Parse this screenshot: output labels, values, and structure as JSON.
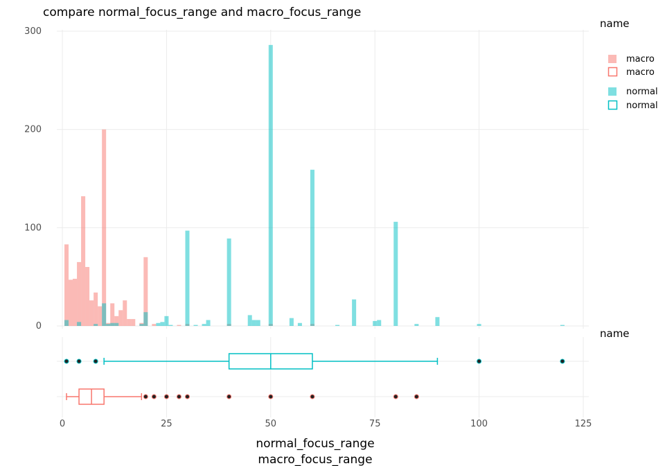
{
  "colors": {
    "macro": "#F8766D",
    "normal": "#00BFC4",
    "grid": "#EBEBEB",
    "outlier_fill": "#222222"
  },
  "chart_data": {
    "type": "bar",
    "title": "compare  normal_focus_range and macro_focus_range",
    "xlabel": "normal_focus_range",
    "xlabel2": "macro_focus_range",
    "xlim": [
      0,
      125
    ],
    "ylim": [
      0,
      300
    ],
    "x_ticks": [
      "0",
      "25",
      "50",
      "75",
      "100",
      "125"
    ],
    "y_ticks": [
      "0",
      "100",
      "200",
      "300"
    ],
    "bin_width": 1,
    "legend": {
      "title": "name",
      "title2": "name",
      "position": "right",
      "entries": [
        "macro",
        "macro",
        "normal",
        "normal"
      ]
    },
    "histogram": [
      {
        "name": "macro",
        "x": [
          1,
          2,
          3,
          4,
          5,
          6,
          7,
          8,
          9,
          10,
          11,
          12,
          13,
          14,
          15,
          16,
          17,
          19,
          20,
          22,
          28,
          30,
          40,
          50,
          60
        ],
        "values": [
          83,
          47,
          48,
          65,
          132,
          60,
          26,
          34,
          20,
          200,
          3,
          23,
          10,
          16,
          26,
          7,
          7,
          3,
          70,
          2,
          1,
          2,
          2,
          2,
          2
        ]
      },
      {
        "name": "normal",
        "x": [
          1,
          4,
          8,
          10,
          11,
          12,
          13,
          19,
          20,
          23,
          24,
          25,
          26,
          30,
          32,
          34,
          35,
          40,
          45,
          46,
          47,
          50,
          55,
          57,
          60,
          66,
          70,
          75,
          76,
          80,
          85,
          90,
          100,
          120
        ],
        "values": [
          6,
          4,
          2,
          23,
          2,
          3,
          3,
          2,
          14,
          3,
          4,
          10,
          1,
          97,
          1,
          2,
          6,
          89,
          11,
          6,
          6,
          286,
          8,
          3,
          159,
          1,
          27,
          5,
          6,
          106,
          2,
          9,
          2,
          1
        ]
      }
    ],
    "boxplots": [
      {
        "name": "normal",
        "min": 10,
        "q1": 40,
        "median": 50,
        "q3": 60,
        "max": 90,
        "outliers": [
          1,
          4,
          8,
          100,
          120
        ]
      },
      {
        "name": "macro",
        "min": 1,
        "q1": 4,
        "median": 7,
        "q3": 10,
        "max": 19,
        "outliers": [
          20,
          22,
          25,
          28,
          30,
          40,
          50,
          60,
          80,
          85
        ]
      }
    ]
  }
}
